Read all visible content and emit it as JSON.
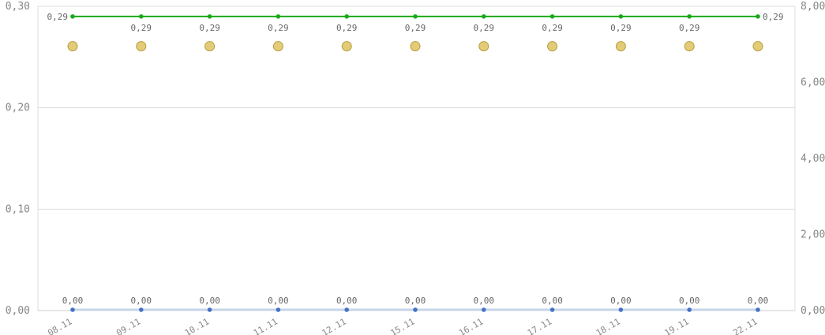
{
  "chart_data": {
    "type": "line",
    "categories": [
      "08.11",
      "09.11",
      "10.11",
      "11.11",
      "12.11",
      "15.11",
      "16.11",
      "17.11",
      "18.11",
      "19.11",
      "22.11"
    ],
    "y_left": {
      "ticks": [
        "0,00",
        "0,10",
        "0,20",
        "0,30"
      ],
      "tick_values": [
        0,
        0.1,
        0.2,
        0.3
      ],
      "ylim": [
        0,
        0.3
      ]
    },
    "y_right": {
      "ticks": [
        "0,00",
        "2,00",
        "4,00",
        "6,00",
        "8,00"
      ],
      "tick_values": [
        0,
        2,
        4,
        6,
        8
      ],
      "ylim": [
        0,
        8
      ]
    },
    "grid": true,
    "legend": "none",
    "series": [
      {
        "kind": "line",
        "axis": "left",
        "color": "#1aaa1a",
        "values": [
          0.29,
          0.29,
          0.29,
          0.29,
          0.29,
          0.29,
          0.29,
          0.29,
          0.29,
          0.29,
          0.29
        ],
        "labels": [
          "0,29",
          "0,29",
          "0,29",
          "0,29",
          "0,29",
          "0,29",
          "0,29",
          "0,29",
          "0,29",
          "0,29",
          "0,29"
        ]
      },
      {
        "kind": "scatter",
        "axis": "right",
        "color": "#e3cc78",
        "stroke": "#b89a3e",
        "values": [
          6.95,
          6.95,
          6.95,
          6.95,
          6.95,
          6.95,
          6.95,
          6.95,
          6.95,
          6.95,
          6.95
        ]
      },
      {
        "kind": "line",
        "axis": "left",
        "color": "#4472c4",
        "values": [
          0,
          0,
          0,
          0,
          0,
          0,
          0,
          0,
          0,
          0,
          0
        ],
        "labels": [
          "0,00",
          "0,00",
          "0,00",
          "0,00",
          "0,00",
          "0,00",
          "0,00",
          "0,00",
          "0,00",
          "0,00",
          "0,00"
        ]
      }
    ]
  }
}
